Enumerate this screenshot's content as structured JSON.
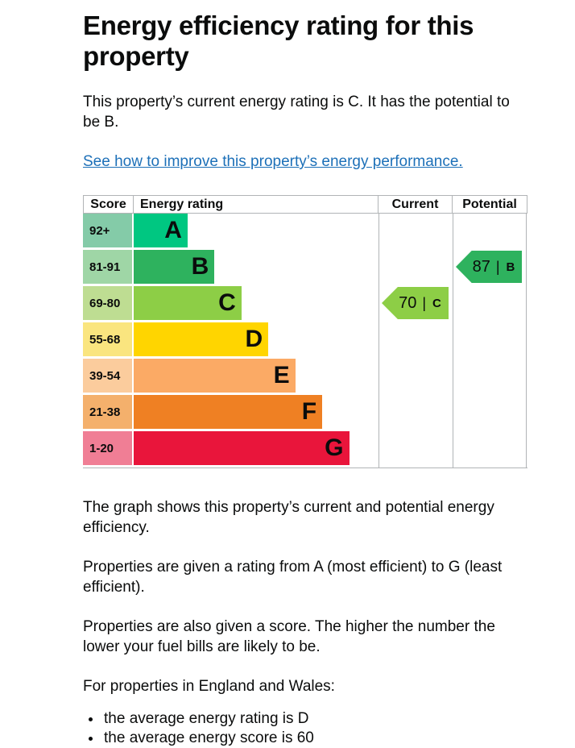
{
  "page": {
    "title": "Energy efficiency rating for this property",
    "intro": "This property’s current energy rating is C. It has the potential to be B.",
    "improve_link": "See how to improve this property’s energy performance.",
    "paragraphs": [
      "The graph shows this property’s current and potential energy efficiency.",
      "Properties are given a rating from A (most efficient) to G (least efficient).",
      "Properties are also given a score. The higher the number the lower your fuel bills are likely to be.",
      "For properties in England and Wales:"
    ],
    "bullets": [
      "the average energy rating is D",
      "the average energy score is 60"
    ]
  },
  "colors": {
    "text": "#0b0c0c",
    "link": "#1d70b8",
    "grid": "#b1b4b6"
  },
  "chart_data": {
    "type": "bar",
    "title": "Energy efficiency rating for this property",
    "columns": [
      "Score",
      "Energy rating",
      "Current",
      "Potential"
    ],
    "bands": [
      {
        "grade": "A",
        "score_range": "92+",
        "color": "#00c781",
        "tint": "#84cba8",
        "bar_fraction": 0.22
      },
      {
        "grade": "B",
        "score_range": "81-91",
        "color": "#2eb25e",
        "tint": "#9fd6a6",
        "bar_fraction": 0.33
      },
      {
        "grade": "C",
        "score_range": "69-80",
        "color": "#8dce46",
        "tint": "#bedd92",
        "bar_fraction": 0.44
      },
      {
        "grade": "D",
        "score_range": "55-68",
        "color": "#ffd500",
        "tint": "#fae57f",
        "bar_fraction": 0.55
      },
      {
        "grade": "E",
        "score_range": "39-54",
        "color": "#fbaa65",
        "tint": "#fbcc9d",
        "bar_fraction": 0.66
      },
      {
        "grade": "F",
        "score_range": "21-38",
        "color": "#ef8023",
        "tint": "#f4b06c",
        "bar_fraction": 0.77
      },
      {
        "grade": "G",
        "score_range": "1-20",
        "color": "#e9153b",
        "tint": "#f07e95",
        "bar_fraction": 0.88
      }
    ],
    "markers": {
      "current": {
        "label": "Current",
        "score": "70",
        "grade": "C",
        "color": "#8dce46"
      },
      "potential": {
        "label": "Potential",
        "score": "87",
        "grade": "B",
        "color": "#2eb25e"
      }
    }
  }
}
